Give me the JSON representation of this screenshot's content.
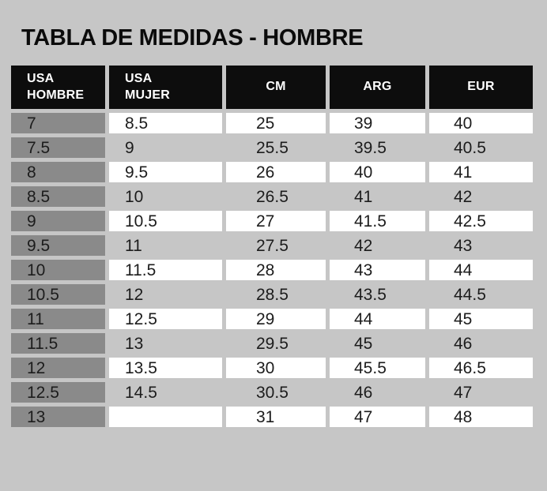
{
  "page": {
    "background": "#c6c6c6",
    "title": "TABLA DE MEDIDAS - HOMBRE"
  },
  "colors": {
    "header_bg": "#0d0d0d",
    "header_text": "#ffffff",
    "first_column_bg": "#8a8a8a",
    "row_alt_white": "#ffffff",
    "row_alt_gray": "#c6c6c6",
    "body_text": "#1c1c1c"
  },
  "chart_data": {
    "type": "table",
    "title": "TABLA DE MEDIDAS - HOMBRE",
    "columns": [
      {
        "id": "usa-hombre",
        "label": "USA\nHOMBRE"
      },
      {
        "id": "usa-mujer",
        "label": "USA\nMUJER"
      },
      {
        "id": "cm",
        "label": "CM"
      },
      {
        "id": "arg",
        "label": "ARG"
      },
      {
        "id": "eur",
        "label": "EUR"
      }
    ],
    "rows": [
      [
        "7",
        "8.5",
        "25",
        "39",
        "40"
      ],
      [
        "7.5",
        "9",
        "25.5",
        "39.5",
        "40.5"
      ],
      [
        "8",
        "9.5",
        "26",
        "40",
        "41"
      ],
      [
        "8.5",
        "10",
        "26.5",
        "41",
        "42"
      ],
      [
        "9",
        "10.5",
        "27",
        "41.5",
        "42.5"
      ],
      [
        "9.5",
        "11",
        "27.5",
        "42",
        "43"
      ],
      [
        "10",
        "11.5",
        "28",
        "43",
        "44"
      ],
      [
        "10.5",
        "12",
        "28.5",
        "43.5",
        "44.5"
      ],
      [
        "11",
        "12.5",
        "29",
        "44",
        "45"
      ],
      [
        "11.5",
        "13",
        "29.5",
        "45",
        "46"
      ],
      [
        "12",
        "13.5",
        "30",
        "45.5",
        "46.5"
      ],
      [
        "12.5",
        "14.5",
        "30.5",
        "46",
        "47"
      ],
      [
        "13",
        "",
        "31",
        "47",
        "48"
      ]
    ]
  }
}
